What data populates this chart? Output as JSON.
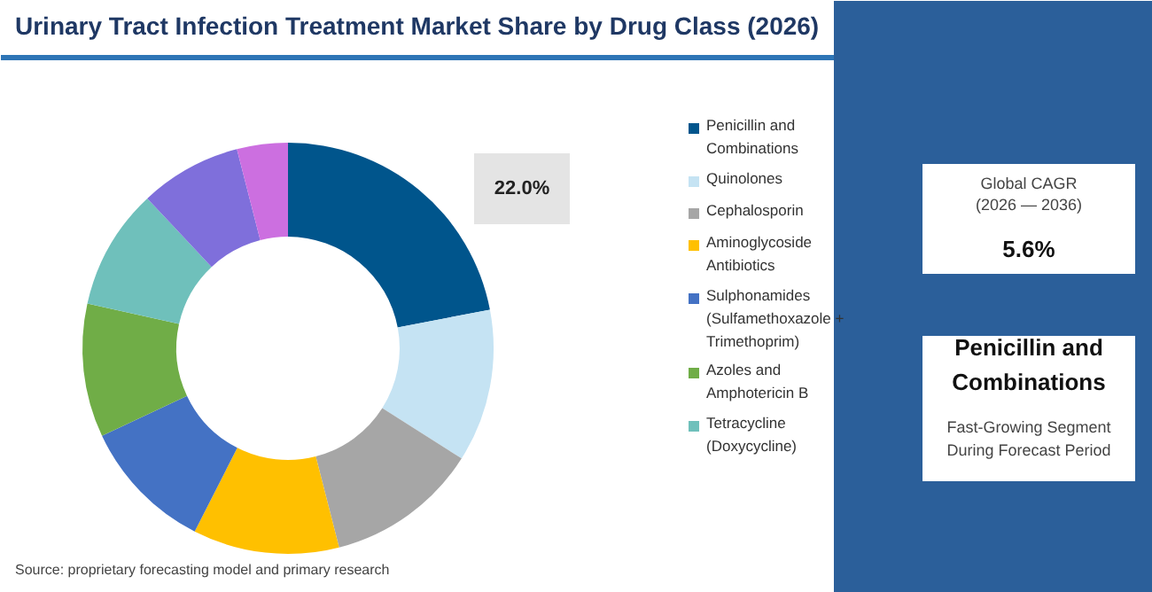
{
  "chart_data": {
    "type": "donut",
    "title": "Urinary Tract Infection Treatment Market Share by Drug Class (2026)",
    "categories": [
      "Penicillin and Combinations",
      "Quinolones",
      "Cephalosporin",
      "Aminoglycoside Antibiotics",
      "Sulphonamides (Sulfamethoxazole + Trimethoprim)",
      "Azoles and Amphotericin B",
      "Tetracycline (Doxycycline)",
      null,
      null
    ],
    "values": [
      22,
      12,
      12,
      11.5,
      10.5,
      10.5,
      9.5,
      8,
      4
    ],
    "colors": [
      "#00558c",
      "#c5e3f3",
      "#a6a6a6",
      "#ffc000",
      "#4472c4",
      "#70ad47",
      "#6fc0bb",
      "#7f6fdb",
      "#cc6fe0"
    ],
    "value_labels": [
      "22.0%",
      null,
      null,
      null,
      null,
      null,
      null,
      null,
      null
    ],
    "legend": "right",
    "annotations": [
      "Global CAGR",
      "(2026 — 2036)",
      "5.6%",
      "Penicillin and Combinations",
      "Fast-Growing Segment During Forecast Period",
      "Source: proprietary forecasting model and primary research"
    ]
  }
}
